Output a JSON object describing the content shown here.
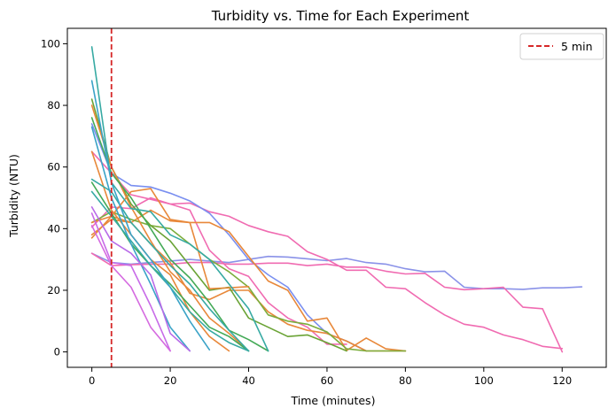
{
  "chart_data": {
    "type": "line",
    "title": "Turbidity vs. Time for Each Experiment",
    "xlabel": "Time (minutes)",
    "ylabel": "Turbidity (NTU)",
    "xlim": [
      -6.25,
      131.25
    ],
    "ylim": [
      -5,
      105
    ],
    "x_ticks": [
      0,
      20,
      40,
      60,
      80,
      100,
      120
    ],
    "y_ticks": [
      0,
      20,
      40,
      60,
      80,
      100
    ],
    "grid": false,
    "legend": {
      "placement": "top-right",
      "entries": [
        "5 min"
      ]
    },
    "vline": {
      "x": 5,
      "label": "5 min",
      "color": "#d62728",
      "style": "dashed"
    },
    "series": [
      {
        "color": "#8a92e8",
        "x": [
          0,
          5,
          10,
          15,
          20,
          25,
          30,
          35,
          40,
          45,
          50,
          55,
          60,
          65,
          70,
          75,
          80,
          85,
          90,
          95,
          100,
          105,
          110,
          115,
          120,
          125
        ],
        "y": [
          32,
          29,
          28.5,
          29,
          29.5,
          30,
          29.5,
          29,
          30,
          31,
          30.8,
          30.2,
          29.6,
          30.3,
          29,
          28.5,
          27,
          26,
          26.2,
          21,
          20.5,
          20.5,
          20.3,
          20.8,
          20.8,
          21.1
        ]
      },
      {
        "color": "#f06bb1",
        "x": [
          0,
          5,
          10,
          15,
          20,
          25,
          30,
          35,
          40,
          45,
          50,
          55,
          60,
          65,
          70,
          75,
          80,
          85,
          90,
          95,
          100,
          105,
          110,
          115,
          120
        ],
        "y": [
          32,
          28,
          28.3,
          28.5,
          28.5,
          29,
          29,
          28.5,
          28.5,
          28.8,
          28.8,
          28,
          28.5,
          27.5,
          27.5,
          26.2,
          25.3,
          25.5,
          21,
          20.2,
          20.5,
          21,
          14.5,
          14,
          0
        ]
      },
      {
        "color": "#f06bb1",
        "x": [
          0,
          5,
          10,
          15,
          20,
          25,
          30,
          35,
          40,
          45,
          50,
          55,
          60,
          65,
          70,
          75,
          80,
          85,
          90,
          95,
          100,
          105,
          110,
          115,
          120
        ],
        "y": [
          65,
          58,
          51,
          49.5,
          48,
          48.3,
          45.5,
          44,
          41,
          39,
          37.5,
          32.5,
          30,
          26.5,
          26.5,
          21,
          20.5,
          16,
          12,
          9,
          8,
          5.5,
          4,
          1.8,
          1.1
        ]
      },
      {
        "color": "#7a8ff0",
        "x": [
          0,
          5,
          10,
          15,
          20,
          25,
          30,
          35,
          40,
          45,
          50,
          55,
          60,
          65,
          70
        ],
        "y": [
          74,
          58,
          54,
          53.5,
          51.5,
          49,
          45,
          38,
          30,
          25,
          21,
          12,
          6,
          3.5,
          0.3
        ]
      },
      {
        "color": "#f06bb1",
        "x": [
          0,
          5,
          10,
          15,
          20,
          25,
          30,
          35,
          40,
          45,
          50,
          55,
          60,
          65
        ],
        "y": [
          40.5,
          47,
          46.5,
          50,
          48,
          46,
          33,
          27,
          24.5,
          16,
          11,
          8,
          2.5,
          2.5
        ]
      },
      {
        "color": "#e8883a",
        "x": [
          0,
          5,
          10,
          15,
          20,
          25,
          30,
          35,
          40,
          45,
          50,
          55,
          60,
          65,
          70,
          75,
          80
        ],
        "y": [
          37,
          44,
          42,
          46,
          42.5,
          42,
          42,
          39,
          31,
          23,
          20,
          10,
          11,
          0.5,
          4.5,
          1,
          0.3
        ]
      },
      {
        "color": "#e8883a",
        "x": [
          0,
          5,
          10,
          15,
          20,
          25,
          30,
          35,
          40,
          45,
          50,
          55,
          60,
          65,
          70,
          75,
          80
        ],
        "y": [
          38,
          43,
          42,
          35,
          29,
          19,
          17,
          20,
          20,
          13,
          9,
          7,
          6,
          3.5,
          0.3,
          0.3,
          0.3
        ]
      },
      {
        "color": "#7cad3c",
        "x": [
          0,
          5,
          10,
          15,
          20,
          25,
          30,
          35,
          40,
          45,
          50,
          55,
          60,
          65,
          70,
          75,
          80
        ],
        "y": [
          42,
          45.5,
          43,
          41,
          40,
          35,
          30,
          26,
          21,
          12,
          10,
          9,
          6.5,
          1,
          0.3,
          0.3,
          0.3
        ]
      },
      {
        "color": "#6aa335",
        "x": [
          0,
          5,
          10,
          15,
          20,
          25,
          30,
          35,
          40,
          45,
          50,
          55,
          60,
          65
        ],
        "y": [
          82,
          60,
          48,
          41,
          36,
          28,
          20,
          21,
          11,
          8,
          5,
          5.5,
          3,
          0.3
        ]
      },
      {
        "color": "#e8883a",
        "x": [
          0,
          5,
          10,
          15,
          20,
          25,
          30,
          35,
          40
        ],
        "y": [
          42,
          44,
          52,
          53,
          43,
          42,
          20.5,
          20.8,
          21.2
        ]
      },
      {
        "color": "#e8883a",
        "x": [
          0,
          5,
          10,
          15,
          20,
          25,
          30,
          35,
          40
        ],
        "y": [
          80,
          60,
          47,
          36,
          26,
          20,
          11,
          6,
          0.3
        ]
      },
      {
        "color": "#e8883a",
        "x": [
          0,
          5,
          10,
          15,
          20,
          25,
          30,
          35
        ],
        "y": [
          65,
          46,
          38,
          30,
          25,
          13,
          5,
          0.3
        ]
      },
      {
        "color": "#44aa57",
        "x": [
          0,
          5,
          10,
          15,
          20,
          25,
          30,
          35,
          40,
          45
        ],
        "y": [
          76,
          58,
          50,
          40,
          30,
          24,
          16,
          7,
          4,
          0.3
        ]
      },
      {
        "color": "#44aa57",
        "x": [
          0,
          5,
          10,
          15,
          20,
          25,
          30,
          35,
          40
        ],
        "y": [
          55,
          45,
          35,
          28,
          22,
          15,
          8,
          5,
          0.3
        ]
      },
      {
        "color": "#37aaa3",
        "x": [
          0,
          5,
          10,
          15,
          20,
          25,
          30,
          35,
          40,
          45
        ],
        "y": [
          99,
          55,
          46.5,
          45.5,
          38,
          35,
          30,
          22,
          14,
          0.3
        ]
      },
      {
        "color": "#37aaa3",
        "x": [
          0,
          5,
          10,
          15,
          20,
          25,
          30,
          35,
          40
        ],
        "y": [
          56,
          52,
          42,
          35,
          28,
          22,
          14,
          7,
          0.3
        ]
      },
      {
        "color": "#37aaa3",
        "x": [
          0,
          5,
          10,
          15,
          20,
          25,
          30,
          35,
          40
        ],
        "y": [
          52,
          44,
          36,
          28,
          21,
          13,
          7,
          3,
          0.3
        ]
      },
      {
        "color": "#3ba3c7",
        "x": [
          0,
          5,
          10,
          15,
          20,
          25,
          30
        ],
        "y": [
          88,
          55,
          38,
          30,
          21,
          10,
          0.7
        ]
      },
      {
        "color": "#3ba3c7",
        "x": [
          0,
          5,
          10,
          15,
          20,
          25
        ],
        "y": [
          73,
          50,
          35,
          22,
          8,
          0.3
        ]
      },
      {
        "color": "#b86be8",
        "x": [
          0,
          5,
          10,
          15,
          20,
          25
        ],
        "y": [
          47,
          36,
          32,
          25,
          6,
          0.3
        ]
      },
      {
        "color": "#c86be8",
        "x": [
          0,
          5,
          10,
          15,
          20
        ],
        "y": [
          45,
          29,
          28,
          15,
          0.3
        ]
      },
      {
        "color": "#d56ae0",
        "x": [
          0,
          5,
          10,
          15,
          20
        ],
        "y": [
          41,
          28,
          21,
          8,
          0.3
        ]
      }
    ]
  }
}
